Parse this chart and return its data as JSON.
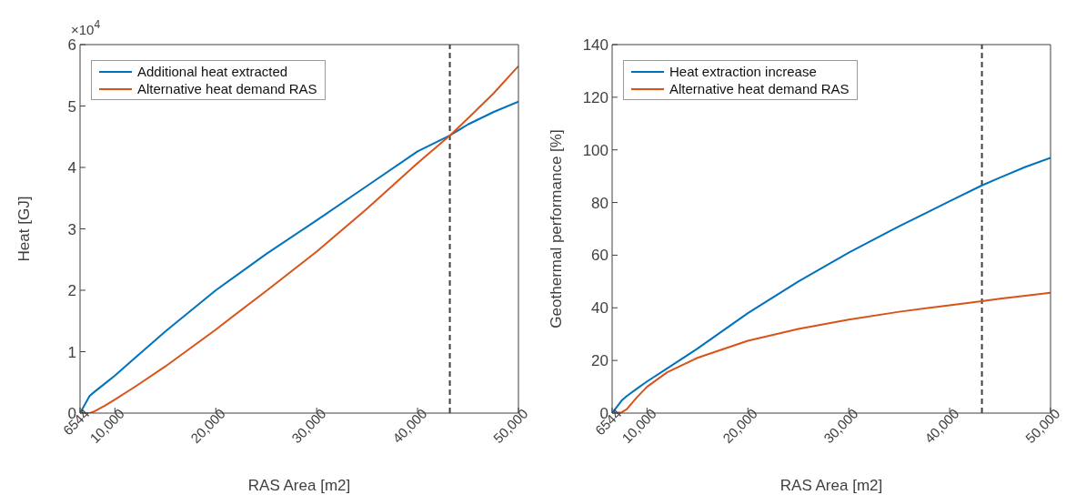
{
  "chart_data": [
    {
      "type": "line",
      "xlabel": "RAS Area [m2]",
      "ylabel": "Heat [GJ]",
      "annotations": [
        "×10$^{4}$"
      ],
      "legend": "top left",
      "x": [
        6544,
        7500,
        8000,
        9000,
        10000,
        12000,
        15000,
        20000,
        25000,
        30000,
        35000,
        40000,
        43200,
        45000,
        47500,
        50000
      ],
      "xlim": [
        6544,
        50000
      ],
      "xticks": [
        6544,
        {
          "value": 10000,
          "label": "10,000"
        },
        {
          "value": 20000,
          "label": "20,000"
        },
        {
          "value": 30000,
          "label": "30,000"
        },
        {
          "value": 40000,
          "label": "40,000"
        },
        {
          "value": 50000,
          "label": "50,000"
        }
      ],
      "ylim": [
        0,
        6
      ],
      "yticks": [
        0,
        1,
        2,
        3,
        4,
        5,
        6
      ],
      "ref_lines": [
        {
          "axis": "x",
          "value": 43200,
          "color": "#404040",
          "line_style": "dashed"
        }
      ],
      "series": [
        {
          "name": "Additional heat extracted",
          "color": "#0072bd",
          "values": [
            0,
            0.28,
            0.35,
            0.48,
            0.61,
            0.9,
            1.33,
            2.0,
            2.59,
            3.14,
            3.7,
            4.26,
            4.52,
            4.7,
            4.9,
            5.07
          ]
        },
        {
          "name": "Alternative heat demand RAS",
          "color": "#d95319",
          "values": [
            0,
            0,
            0.03,
            0.12,
            0.22,
            0.43,
            0.76,
            1.36,
            1.99,
            2.63,
            3.33,
            4.07,
            4.52,
            4.8,
            5.2,
            5.65
          ]
        }
      ]
    },
    {
      "type": "line",
      "xlabel": "RAS Area [m2]",
      "ylabel": "Geothermal performance [%]",
      "legend": "top left",
      "x": [
        6544,
        7500,
        8000,
        9000,
        10000,
        12000,
        15000,
        20000,
        25000,
        30000,
        35000,
        40000,
        43200,
        45000,
        47500,
        50000
      ],
      "xlim": [
        6544,
        50000
      ],
      "xticks": [
        6544,
        {
          "value": 10000,
          "label": "10,000"
        },
        {
          "value": 20000,
          "label": "20,000"
        },
        {
          "value": 30000,
          "label": "30,000"
        },
        {
          "value": 40000,
          "label": "40,000"
        },
        {
          "value": 50000,
          "label": "50,000"
        }
      ],
      "ylim": [
        0,
        140
      ],
      "yticks": [
        0,
        20,
        40,
        60,
        80,
        100,
        120,
        140
      ],
      "ref_lines": [
        {
          "axis": "x",
          "value": 43200,
          "color": "#404040",
          "line_style": "dashed"
        }
      ],
      "series": [
        {
          "name": "Heat extraction increase",
          "color": "#0072bd",
          "values": [
            0,
            4.8,
            6.5,
            9.3,
            12,
            17,
            24.5,
            38,
            50,
            61,
            71,
            80.5,
            86.5,
            89.5,
            93.5,
            97
          ]
        },
        {
          "name": "Alternative heat demand RAS",
          "color": "#d95319",
          "values": [
            0,
            0.3,
            1.5,
            6,
            10,
            15.5,
            21,
            27.5,
            32,
            35.5,
            38.5,
            41,
            42.5,
            43.5,
            44.6,
            45.7
          ]
        }
      ]
    }
  ]
}
